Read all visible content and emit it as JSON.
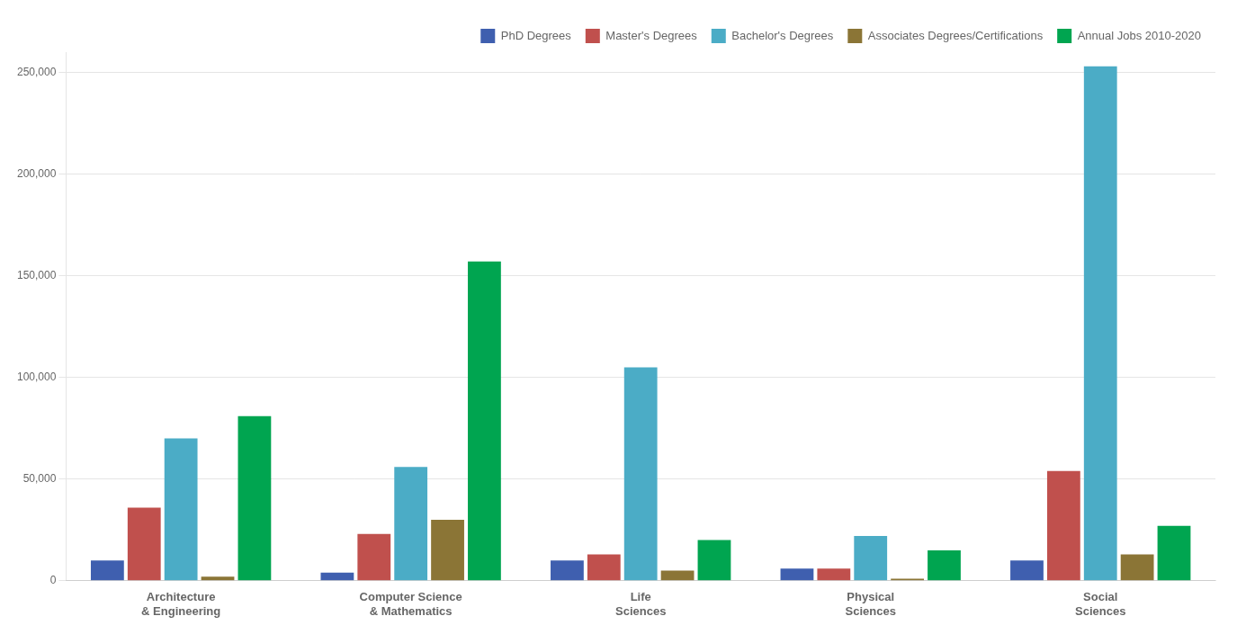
{
  "chart_data": {
    "type": "bar",
    "categories": [
      "Architecture\n& Engineering",
      "Computer Science\n& Mathematics",
      "Life\nSciences",
      "Physical\nSciences",
      "Social\nSciences"
    ],
    "series": [
      {
        "name": "PhD Degrees",
        "color": "#3F5FAF",
        "values": [
          10000,
          4000,
          10000,
          6000,
          10000
        ]
      },
      {
        "name": "Master's Degrees",
        "color": "#C0504D",
        "values": [
          36000,
          23000,
          13000,
          6000,
          54000
        ]
      },
      {
        "name": "Bachelor's Degrees",
        "color": "#4BACC6",
        "values": [
          70000,
          56000,
          105000,
          22000,
          253000
        ]
      },
      {
        "name": "Associates Degrees/Certifications",
        "color": "#8B7536",
        "values": [
          2000,
          30000,
          5000,
          1000,
          13000
        ]
      },
      {
        "name": "Annual Jobs 2010-2020",
        "color": "#00A550",
        "values": [
          81000,
          157000,
          20000,
          15000,
          27000
        ]
      }
    ],
    "ylim": [
      0,
      260000
    ],
    "yticks": [
      0,
      {
        "value": 50000,
        "label": "50,000"
      },
      {
        "value": 100000,
        "label": "100,000"
      },
      {
        "value": 150000,
        "label": "150,000"
      },
      {
        "value": 200000,
        "label": "200,000"
      },
      {
        "value": 250000,
        "label": "250,000"
      }
    ],
    "grid": true,
    "legend": "upper right"
  }
}
